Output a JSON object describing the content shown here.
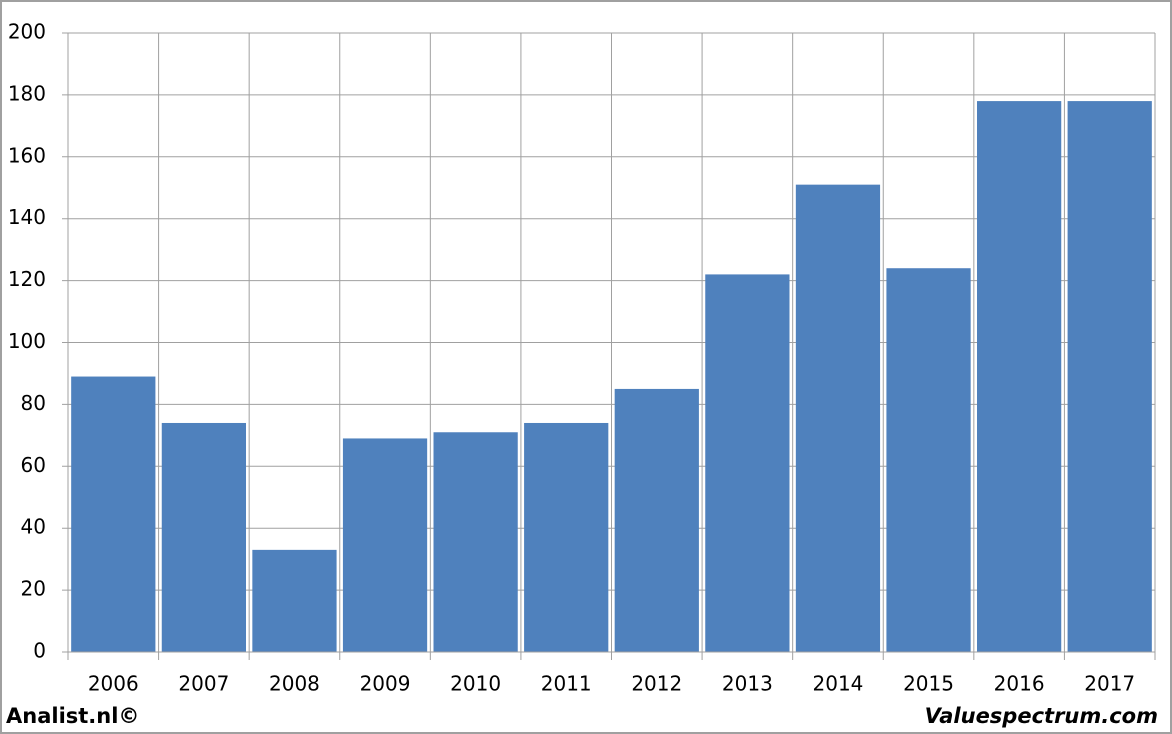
{
  "chart_data": {
    "type": "bar",
    "categories": [
      "2006",
      "2007",
      "2008",
      "2009",
      "2010",
      "2011",
      "2012",
      "2013",
      "2014",
      "2015",
      "2016",
      "2017"
    ],
    "values": [
      89,
      74,
      33,
      69,
      71,
      74,
      85,
      122,
      151,
      124,
      178,
      178
    ],
    "color": "#4f81bd",
    "ylim": [
      0,
      200
    ],
    "yticks": [
      0,
      20,
      40,
      60,
      80,
      100,
      120,
      140,
      160,
      180,
      200
    ],
    "grid": true
  },
  "footer": {
    "left": "Analist.nl©",
    "right": "Valuespectrum.com"
  }
}
